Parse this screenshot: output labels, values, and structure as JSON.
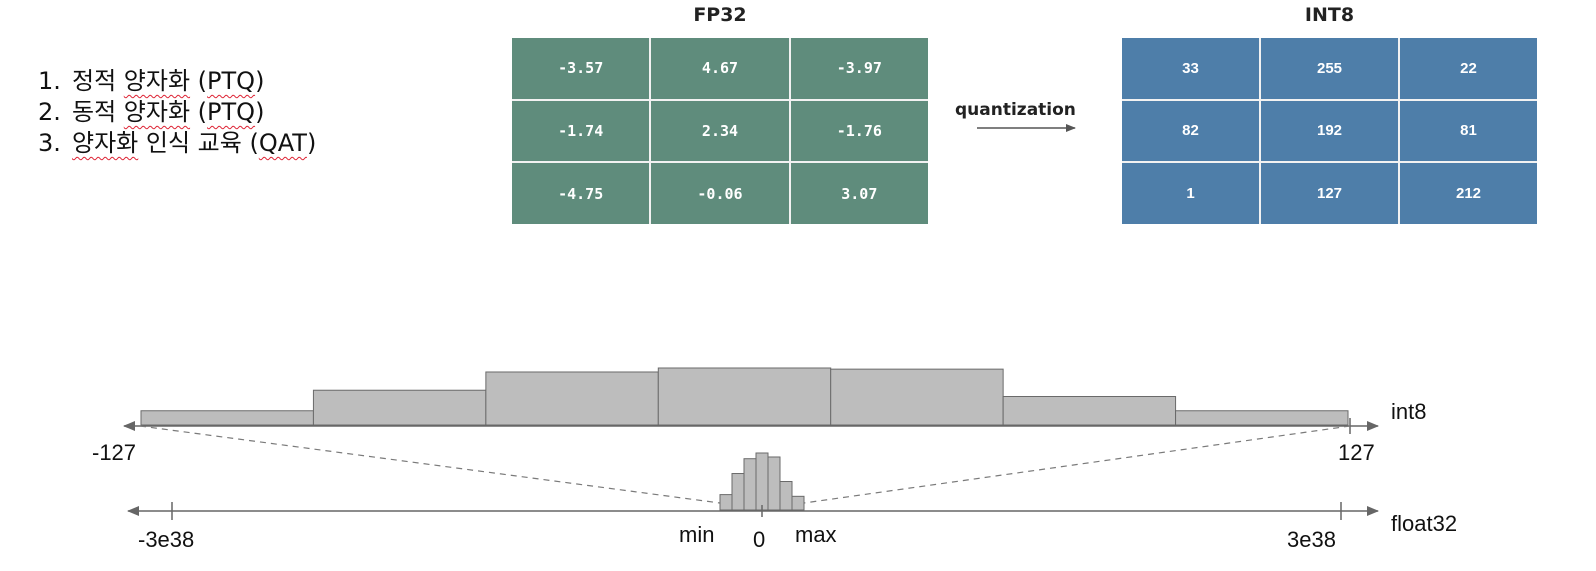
{
  "methods": [
    {
      "num": "1.",
      "pre": "정적 ",
      "mark": "양자화",
      "post": " (",
      "code": "PTQ",
      "end": ")"
    },
    {
      "num": "2.",
      "pre": "동적 ",
      "mark": "양자화",
      "post": " (",
      "code": "PTQ",
      "end": ")"
    },
    {
      "num": "3.",
      "pre": "",
      "mark": "양자화",
      "post": " 인식 교육 (",
      "code": "QAT",
      "end": ")"
    }
  ],
  "fp32": {
    "title": "FP32",
    "cells": [
      "-3.57",
      "4.67",
      "-3.97",
      "-1.74",
      "2.34",
      "-1.76",
      "-4.75",
      "-0.06",
      "3.07"
    ],
    "color": "#5f8c7c"
  },
  "int8": {
    "title": "INT8",
    "cells": [
      "33",
      "255",
      "22",
      "82",
      "192",
      "81",
      "1",
      "127",
      "212"
    ],
    "color": "#4e7ea9"
  },
  "arrow_label": "quantization",
  "int8_axis": {
    "name": "int8",
    "min_label": "-127",
    "max_label": "127",
    "histogram_levels": [
      0.25,
      0.61,
      0.93,
      1.0,
      0.98,
      0.5,
      0.25
    ]
  },
  "float32_axis": {
    "name": "float32",
    "min_label": "-3e38",
    "max_label": "3e38",
    "zero_label": "0",
    "range_min_label": "min",
    "range_max_label": "max",
    "histogram_levels": [
      0.27,
      0.64,
      0.9,
      1.0,
      0.93,
      0.5,
      0.24
    ]
  },
  "colors": {
    "histogram_fill": "#bdbdbd",
    "histogram_stroke": "#6a6a6a",
    "axis": "#666666",
    "dashed": "#7a7a7a"
  }
}
